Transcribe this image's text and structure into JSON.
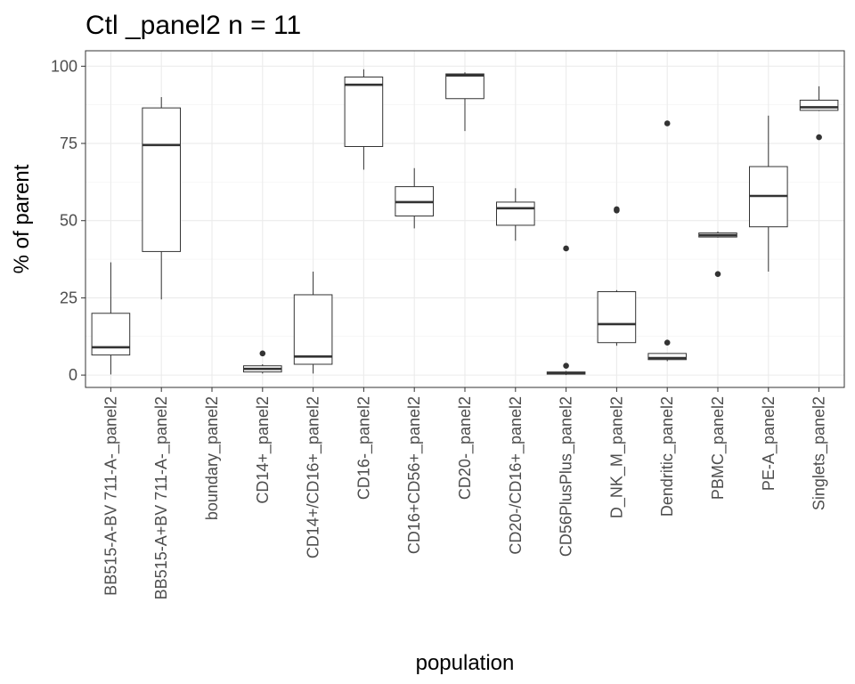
{
  "chart_data": {
    "type": "boxplot",
    "title": "Ctl _panel2 n = 11",
    "xlabel": "population",
    "ylabel": "% of parent",
    "ylim": [
      -4,
      105
    ],
    "yticks": [
      0,
      25,
      50,
      75,
      100
    ],
    "grid": true,
    "legend": "none",
    "categories": [
      "BB515-A-BV 711-A-_panel2",
      "BB515-A+BV 711-A-_panel2",
      "boundary_panel2",
      "CD14+_panel2",
      "CD14+/CD16+_panel2",
      "CD16-_panel2",
      "CD16+CD56+_panel2",
      "CD20-_panel2",
      "CD20-/CD16+_panel2",
      "CD56PlusPlus_panel2",
      "D_NK_M_panel2",
      "Dendritic_panel2",
      "PBMC_panel2",
      "PE-A_panel2",
      "Singlets_panel2"
    ],
    "boxes": [
      {
        "whisker_low": 0.2,
        "q1": 6.5,
        "median": 9,
        "q3": 20,
        "whisker_high": 36.5,
        "outliers": []
      },
      {
        "whisker_low": 24.5,
        "q1": 40,
        "median": 74.5,
        "q3": 86.5,
        "whisker_high": 90,
        "outliers": []
      },
      null,
      {
        "whisker_low": 0.5,
        "q1": 1,
        "median": 2,
        "q3": 3,
        "whisker_high": 3.5,
        "outliers": [
          7
        ]
      },
      {
        "whisker_low": 0.5,
        "q1": 3.5,
        "median": 6,
        "q3": 26,
        "whisker_high": 33.5,
        "outliers": []
      },
      {
        "whisker_low": 66.5,
        "q1": 74,
        "median": 94,
        "q3": 96.5,
        "whisker_high": 99,
        "outliers": []
      },
      {
        "whisker_low": 47.5,
        "q1": 51.5,
        "median": 56,
        "q3": 61,
        "whisker_high": 67,
        "outliers": []
      },
      {
        "whisker_low": 79,
        "q1": 89.5,
        "median": 97,
        "q3": 97.5,
        "whisker_high": 98,
        "outliers": []
      },
      {
        "whisker_low": 43.5,
        "q1": 48.5,
        "median": 54,
        "q3": 56,
        "whisker_high": 60.5,
        "outliers": []
      },
      {
        "whisker_low": 0,
        "q1": 0.3,
        "median": 0.6,
        "q3": 1,
        "whisker_high": 1.3,
        "outliers": [
          3,
          41
        ]
      },
      {
        "whisker_low": 9.5,
        "q1": 10.5,
        "median": 16.5,
        "q3": 27,
        "whisker_high": 27.5,
        "outliers": [
          53.3,
          53.7
        ]
      },
      {
        "whisker_low": 4.5,
        "q1": 5,
        "median": 5.5,
        "q3": 7,
        "whisker_high": 7,
        "outliers": [
          10.5,
          81.5
        ]
      },
      {
        "whisker_low": 44.5,
        "q1": 44.7,
        "median": 45.3,
        "q3": 46,
        "whisker_high": 46.5,
        "outliers": [
          32.7
        ]
      },
      {
        "whisker_low": 33.5,
        "q1": 48,
        "median": 58,
        "q3": 67.5,
        "whisker_high": 84,
        "outliers": []
      },
      {
        "whisker_low": 85.5,
        "q1": 85.7,
        "median": 86.7,
        "q3": 89,
        "whisker_high": 93.5,
        "outliers": [
          77
        ]
      }
    ]
  }
}
